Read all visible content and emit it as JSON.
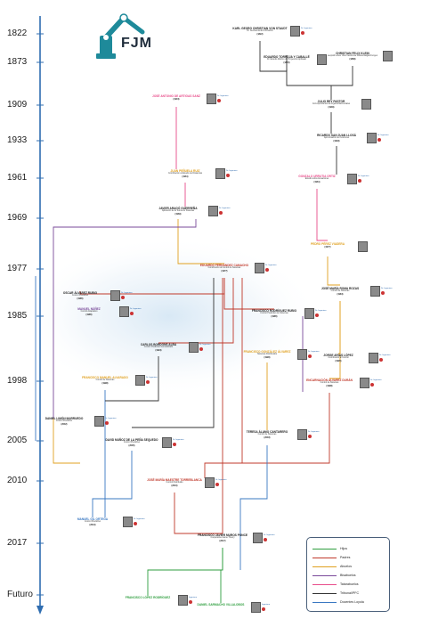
{
  "logo": {
    "text": "FJM"
  },
  "timeline": {
    "years": [
      "1822",
      "1873",
      "1909",
      "1933",
      "1961",
      "1969",
      "1977",
      "1985",
      "1998",
      "2005",
      "2010",
      "2017",
      "Futuro"
    ]
  },
  "legend": {
    "items": [
      {
        "label": "Hijos",
        "color": "#2e9e3e"
      },
      {
        "label": "Padres",
        "color": "#c0392b"
      },
      {
        "label": "Abuelos",
        "color": "#e0a020"
      },
      {
        "label": "Bisabuelos",
        "color": "#7a4a9a"
      },
      {
        "label": "Tatarabuelos",
        "color": "#e84c8a"
      },
      {
        "label": "Tribunal/PFC",
        "color": "#333333"
      },
      {
        "label": "Docentes Loyola",
        "color": "#3a78c2"
      }
    ]
  },
  "people": [
    {
      "id": "vonstaudt",
      "name": "KARL GEORG CHRISTIAN VON STAUDT",
      "desc": "Dr. Geometría de la Posición",
      "year": "(1822)",
      "color": "#222222",
      "tag": "Dr. Ingeniero"
    },
    {
      "id": "klein",
      "name": "CHRISTIAN FELIX KLEIN",
      "desc": "Leopold Lehrer Über bestimmte Differentialgleichungen",
      "year": "(1868)",
      "color": "#222222",
      "tag": ""
    },
    {
      "id": "torroja",
      "name": "EDUARDO TORROJA Y CABALLÉ",
      "desc": "Dr. Estudio Métrico de Proyección Aplicado",
      "year": "(1873)",
      "color": "#222222",
      "tag": ""
    },
    {
      "id": "nieto",
      "name": "JOSÉ ANTONIO DE ARTIGAS SANZ",
      "desc": "",
      "year": "(1904)",
      "color": "#e84c8a",
      "tag": "Dr. Ingeniero"
    },
    {
      "id": "reypastor",
      "name": "JULIO REY PASTOR",
      "desc": "Correspondencia de Figuras Elementales",
      "year": "(1909)",
      "color": "#222222",
      "tag": ""
    },
    {
      "id": "sanjuan",
      "name": "RICARDO SAN JUAN LLOSÁ",
      "desc": "Aproximación de Funciones",
      "year": "(1933)",
      "color": "#222222",
      "tag": "Dr. Ingeniero"
    },
    {
      "id": "peñuela",
      "name": "JUAN PEÑUELA RUIZ",
      "desc": "Contribución al Estudio de Distancias",
      "year": "(1961)",
      "color": "#e0a020",
      "tag": "Dr. Ingeniero"
    },
    {
      "id": "urrutia",
      "name": "GONZALO URRUTIA ORTIZ",
      "desc": "Estudio sobre Ecuaciones",
      "year": "(1961)",
      "color": "#e84c8a",
      "tag": "Dr. Ingeniero"
    },
    {
      "id": "guerra",
      "name": "JAVIER ARAGÓ GUERREÑA",
      "desc": "Aplicación de la Teoría de Sistemas",
      "year": "(1969)",
      "color": "#222222",
      "tag": "Dr. Ingeniero"
    },
    {
      "id": "fernandez",
      "name": "EDUARDO FERNÁNDEZ CAMACHO",
      "desc": "Contribución al Control de Sistemas",
      "year": "(1977)",
      "color": "#c0392b",
      "tag": "Dr. Ingeniero"
    },
    {
      "id": "valverde",
      "name": "PEDRO PÉREZ VIADERA",
      "desc": "",
      "year": "(1977)",
      "color": "#e0a020",
      "tag": ""
    },
    {
      "id": "ruben",
      "name": "OSCAR ÁLVAREZ RUBIO",
      "desc": "Control Predictivo",
      "year": "(1985)",
      "color": "#222222",
      "tag": "Dr. Ingeniero"
    },
    {
      "id": "rubio",
      "name": "JOSÉ MARÍA ROMA ROZAS",
      "desc": "Control de Sistemas",
      "year": "(1984)",
      "color": "#222222",
      "tag": "Dr. Ingeniero"
    },
    {
      "id": "ramonnunez",
      "name": "MANUEL NÚÑEZ",
      "desc": "Control Adaptativo",
      "year": "(1985)",
      "color": "#7a4a9a",
      "tag": "Dr. Ingeniero"
    },
    {
      "id": "berenguel",
      "name": "FRANCISCO RODRÍGUEZ RUBIO",
      "desc": "Control Predictivo de Sistemas",
      "year": "(1985)",
      "color": "#222222",
      "tag": "Dr. Ingeniero"
    },
    {
      "id": "soria",
      "name": "CARLOS BORDONS ALBA",
      "desc": "Control Predictivo Generalizado",
      "year": "(1994)",
      "color": "#222222",
      "tag": "Dr. Ingeniero"
    },
    {
      "id": "moreno",
      "name": "FRANCISCO GONZÁLEZ ÁLVAREZ",
      "desc": "Sistemas Distribuidos",
      "year": "(1996)",
      "color": "#e0a020",
      "tag": "Dr. Ingeniero"
    },
    {
      "id": "limon",
      "name": "JORGE ARIAS LÓPEZ",
      "desc": "Contribución al Control",
      "year": "(1995)",
      "color": "#222222",
      "tag": "Dr. Ingeniero"
    },
    {
      "id": "lopezmartinez",
      "name": "FRANCISCO MANUEL ALVARADO",
      "desc": "Control de Sistemas",
      "year": "(1998)",
      "color": "#e0a020",
      "tag": "Dr. Ingeniero"
    },
    {
      "id": "alamo",
      "name": "ENCARNACIÓN ÁLVAREZ DURÁN",
      "desc": "Control de Sistemas",
      "year": "(1998)",
      "color": "#c0392b",
      "tag": "Dr. Ingeniero"
    },
    {
      "id": "limonmarruedo",
      "name": "DANIEL LIMÓN MARRUEDO",
      "desc": "Control Predictivo",
      "year": "(2002)",
      "color": "#222222",
      "tag": "Dr. Ingeniero"
    },
    {
      "id": "ramirez",
      "name": "DAVID MUÑOZ DE LA PEÑA SEQUEDO",
      "desc": "Control Predictivo",
      "year": "(2005)",
      "color": "#222222",
      "tag": "Dr. Ingeniero"
    },
    {
      "id": "guzman",
      "name": "TERESA ÁLAMO CANTARERO",
      "desc": "Control de Sistemas",
      "year": "(2003)",
      "color": "#222222",
      "tag": "Dr. Ingeniero"
    },
    {
      "id": "maestre",
      "name": "JOSÉ MARÍA MAESTRE TORREBLANCA",
      "desc": "Control Distribuido",
      "year": "(2010)",
      "color": "#c0392b",
      "tag": "Dr. Ingeniero"
    },
    {
      "id": "ferramosca",
      "name": "MANUEL GIL ORTEGA",
      "desc": "Control Predictivo",
      "year": "(2013)",
      "color": "#3a78c2",
      "tag": "Dr. Ingeniero"
    },
    {
      "id": "muros",
      "name": "FRANCISCO JAVIER MUROS PONCE",
      "desc": "Cooperative Game Theory",
      "year": "(2017)",
      "color": "#222222",
      "tag": "Dr. Ingeniero"
    },
    {
      "id": "lopezrodriguez",
      "name": "FRANCISCO LÓPEZ RODRÍGUEZ",
      "desc": "",
      "year": "",
      "color": "#2e9e3e",
      "tag": "Ingeniero"
    },
    {
      "id": "sarmacho",
      "name": "DANIEL SARMACHO VILLALOBOS",
      "desc": "",
      "year": "",
      "color": "#2e9e3e",
      "tag": "Ingeniero"
    }
  ]
}
